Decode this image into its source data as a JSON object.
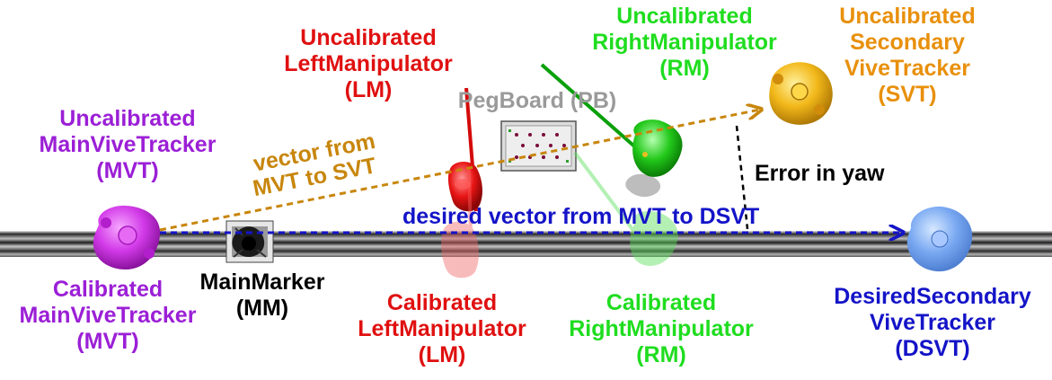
{
  "colors": {
    "purple": "#9b1fd6",
    "red": "#e01010",
    "green": "#1fdd1f",
    "orange": "#e8900c",
    "blue": "#1414c8",
    "gray": "#9a9a9a",
    "black": "#000000",
    "arrow_orange": "#c8860c",
    "arrow_blue": "#1414c8"
  },
  "labels": {
    "uncal_mvt": [
      "Uncalibrated",
      "MainViveTracker",
      "(MVT)"
    ],
    "cal_mvt": [
      "Calibrated",
      "MainViveTracker",
      "(MVT)"
    ],
    "main_marker": [
      "MainMarker",
      "(MM)"
    ],
    "uncal_lm": [
      "Uncalibrated",
      "LeftManipulator",
      "(LM)"
    ],
    "cal_lm": [
      "Calibrated",
      "LeftManipulator",
      "(LM)"
    ],
    "pegboard": "PegBoard (PB)",
    "uncal_rm": [
      "Uncalibrated",
      "RightManipulator",
      "(RM)"
    ],
    "cal_rm": [
      "Calibrated",
      "RightManipulator",
      "(RM)"
    ],
    "uncal_svt": [
      "Uncalibrated",
      "Secondary",
      "ViveTracker",
      "(SVT)"
    ],
    "dsvt": [
      "DesiredSecondary",
      "ViveTracker",
      "(DSVT)"
    ],
    "vector_mvt_svt": [
      "vector from",
      "MVT to SVT"
    ],
    "desired_vector": "desired vector from MVT to DSVT",
    "error_yaw": "Error in yaw"
  }
}
